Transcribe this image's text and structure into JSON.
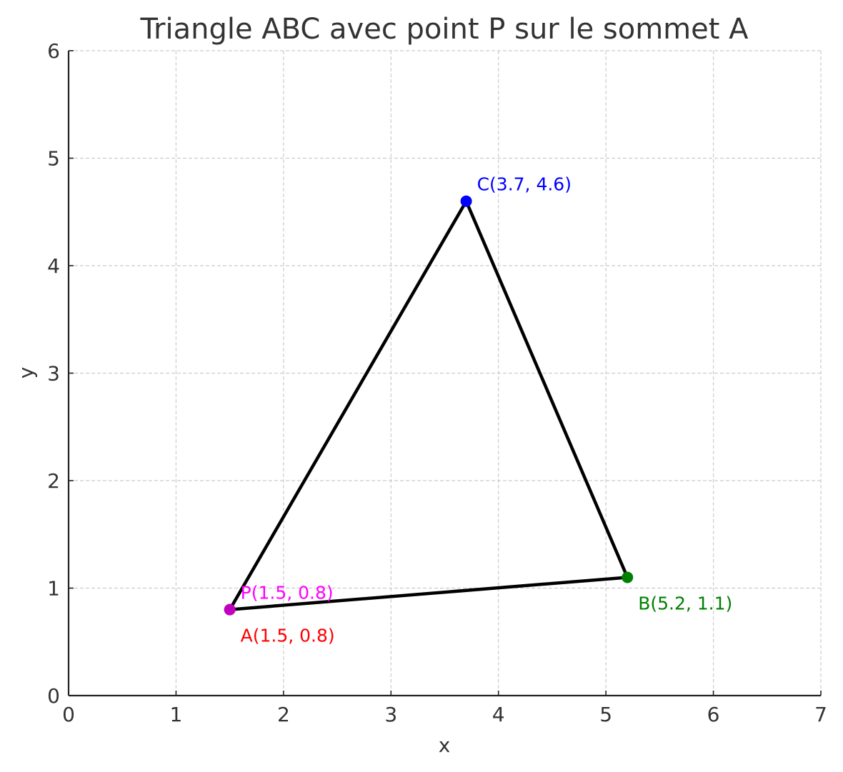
{
  "chart_data": {
    "type": "scatter",
    "title": "Triangle ABC avec point P sur le sommet A",
    "xlabel": "x",
    "ylabel": "y",
    "xlim": [
      0,
      7
    ],
    "ylim": [
      0,
      6
    ],
    "x_ticks": [
      "0",
      "1",
      "2",
      "3",
      "4",
      "5",
      "6",
      "7"
    ],
    "y_ticks": [
      "0",
      "1",
      "2",
      "3",
      "4",
      "5",
      "6"
    ],
    "grid": true,
    "triangle": {
      "vertices": [
        "A",
        "B",
        "C"
      ],
      "color": "#000000"
    },
    "points": [
      {
        "id": "A",
        "x": 1.5,
        "y": 0.8,
        "label": "A(1.5, 0.8)",
        "color": "#ff0000",
        "label_position": "below-right"
      },
      {
        "id": "B",
        "x": 5.2,
        "y": 1.1,
        "label": "B(5.2, 1.1)",
        "color": "#008000",
        "label_position": "below-right"
      },
      {
        "id": "C",
        "x": 3.7,
        "y": 4.6,
        "label": "C(3.7, 4.6)",
        "color": "#0000ff",
        "label_position": "above-right"
      },
      {
        "id": "P",
        "x": 1.5,
        "y": 0.8,
        "label": "P(1.5, 0.8)",
        "color": "#ff00ff",
        "marker_color": "#c000c0",
        "label_position": "above-right"
      }
    ]
  }
}
